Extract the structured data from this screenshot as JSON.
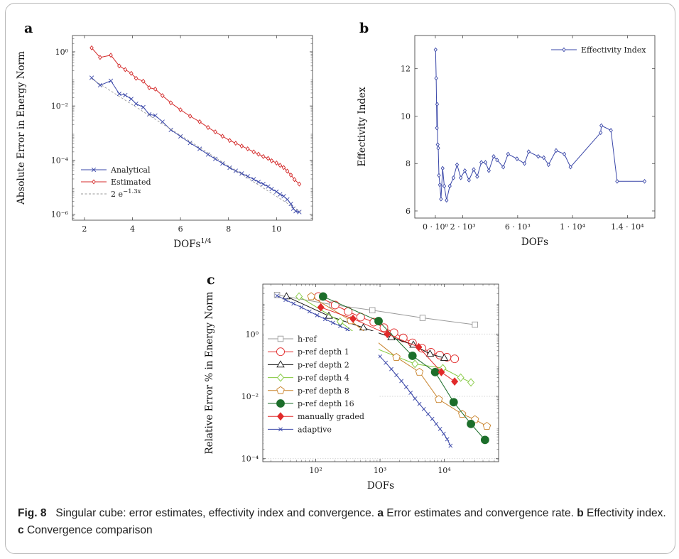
{
  "chart_data": [
    {
      "panel_label": "a",
      "type": "line",
      "xlabel_base": "DOFs",
      "xlabel_sup": "1/4",
      "ylabel": "Absolute Error in Energy Norm",
      "xlim": [
        1.5,
        11.5
      ],
      "yscale": "log",
      "ylim": [
        6e-07,
        4
      ],
      "xticks": [
        2,
        4,
        6,
        8,
        10
      ],
      "yticks": [
        {
          "value": 1,
          "label": "10⁰"
        },
        {
          "value": 0.01,
          "label": "10⁻²"
        },
        {
          "value": 0.0001,
          "label": "10⁻⁴"
        },
        {
          "value": 1e-06,
          "label": "10⁻⁶"
        }
      ],
      "legend_position": "bottom-left",
      "series": [
        {
          "name": "Analytical",
          "color": "#3a47a8",
          "marker": "x",
          "x": [
            2.3,
            2.65,
            3.1,
            3.45,
            3.7,
            3.95,
            4.15,
            4.45,
            4.7,
            4.95,
            5.25,
            5.6,
            6.0,
            6.4,
            6.8,
            7.15,
            7.45,
            7.75,
            8.05,
            8.3,
            8.55,
            8.8,
            9.05,
            9.25,
            9.45,
            9.65,
            9.8,
            10.0,
            10.15,
            10.3,
            10.45,
            10.6,
            10.7,
            10.8,
            10.95
          ],
          "y": [
            0.11,
            0.058,
            0.085,
            0.028,
            0.025,
            0.018,
            0.012,
            0.009,
            0.0049,
            0.0044,
            0.0026,
            0.0013,
            0.00075,
            0.00043,
            0.00026,
            0.00016,
            0.00011,
            7.5e-05,
            5.2e-05,
            4e-05,
            3.2e-05,
            2.5e-05,
            1.95e-05,
            1.55e-05,
            1.3e-05,
            1.05e-05,
            8.5e-06,
            6.8e-06,
            5.4e-06,
            4.6e-06,
            3.5e-06,
            2.4e-06,
            1.6e-06,
            1.3e-06,
            1.2e-06
          ]
        },
        {
          "name": "Estimated",
          "color": "#d42b2b",
          "marker": "diamond",
          "x": [
            2.3,
            2.65,
            3.1,
            3.45,
            3.7,
            3.95,
            4.15,
            4.45,
            4.7,
            4.95,
            5.25,
            5.6,
            6.0,
            6.4,
            6.8,
            7.15,
            7.45,
            7.75,
            8.05,
            8.3,
            8.55,
            8.8,
            9.05,
            9.25,
            9.45,
            9.65,
            9.8,
            10.0,
            10.15,
            10.3,
            10.45,
            10.6,
            10.75,
            10.95
          ],
          "y": [
            1.4,
            0.62,
            0.75,
            0.3,
            0.22,
            0.16,
            0.105,
            0.082,
            0.047,
            0.042,
            0.024,
            0.013,
            0.0072,
            0.0042,
            0.0026,
            0.0016,
            0.0011,
            0.00076,
            0.00053,
            0.00042,
            0.00033,
            0.00026,
            0.0002,
            0.000165,
            0.000135,
            0.000115,
            9.4e-05,
            7.8e-05,
            6.4e-05,
            5.3e-05,
            3.9e-05,
            2.8e-05,
            1.9e-05,
            1.3e-05
          ]
        },
        {
          "name": "2 e",
          "name_sup": "−1.3x",
          "color": "#9a9a9a",
          "marker": "none",
          "dashed": true,
          "x": [
            2.3,
            11.0
          ],
          "y": [
            0.1004,
            1.24e-06
          ]
        }
      ]
    },
    {
      "panel_label": "b",
      "type": "line",
      "xlabel": "DOFs",
      "ylabel": "Effectivity Index",
      "xlim": [
        -1500,
        16000
      ],
      "ylim": [
        5.7,
        13.4
      ],
      "xticks": [
        {
          "value": 0,
          "label": "0 · 10⁰"
        },
        {
          "value": 2000,
          "label": "2 · 10³"
        },
        {
          "value": 6000,
          "label": "6 · 10³"
        },
        {
          "value": 10000,
          "label": "1 · 10⁴"
        },
        {
          "value": 14000,
          "label": "1.4 · 10⁴"
        }
      ],
      "yticks": [
        6,
        8,
        10,
        12
      ],
      "legend_position": "top-right",
      "series": [
        {
          "name": "Effectivity Index",
          "color": "#3a47a8",
          "marker": "diamond",
          "x": [
            15,
            60,
            110,
            130,
            170,
            210,
            260,
            330,
            410,
            530,
            650,
            820,
            1050,
            1320,
            1580,
            1850,
            2150,
            2450,
            2800,
            3050,
            3350,
            3650,
            3900,
            4250,
            4500,
            4950,
            5300,
            5950,
            6500,
            6800,
            7500,
            7900,
            8250,
            8800,
            9400,
            9850,
            12050,
            12100,
            12800,
            13250,
            15250
          ],
          "y": [
            12.8,
            11.6,
            9.5,
            10.5,
            8.8,
            8.65,
            7.5,
            7.1,
            6.5,
            7.8,
            7.05,
            6.45,
            7.05,
            7.4,
            7.95,
            7.4,
            7.7,
            7.3,
            7.75,
            7.45,
            8.05,
            8.05,
            7.7,
            8.3,
            8.15,
            7.85,
            8.4,
            8.2,
            8.0,
            8.5,
            8.3,
            8.25,
            7.95,
            8.55,
            8.4,
            7.85,
            9.3,
            9.6,
            9.4,
            7.25,
            7.25
          ]
        }
      ]
    },
    {
      "panel_label": "c",
      "type": "line",
      "xlabel": "DOFs",
      "ylabel": "Relative Error % in Energy Norm",
      "xscale": "log",
      "yscale": "log",
      "xlim": [
        15,
        70000
      ],
      "ylim": [
        8e-05,
        40
      ],
      "xticks": [
        {
          "value": 100,
          "label": "10²"
        },
        {
          "value": 1000,
          "label": "10³"
        },
        {
          "value": 10000,
          "label": "10⁴"
        }
      ],
      "yticks": [
        {
          "value": 1,
          "label": "10⁰"
        },
        {
          "value": 0.01,
          "label": "10⁻²"
        },
        {
          "value": 0.0001,
          "label": "10⁻⁴"
        }
      ],
      "grid": "horizontal-dashed",
      "legend_position": "left",
      "series": [
        {
          "name": "h-ref",
          "color": "#9a9a9a",
          "marker": "square",
          "markerSize": 3.8,
          "x": [
            25,
            180,
            760,
            4600,
            30000
          ],
          "y": [
            18,
            8.8,
            5.8,
            3.3,
            2.0
          ]
        },
        {
          "name": "p-ref depth 1",
          "color": "#e12a2a",
          "marker": "circle-open",
          "markerSize": 5.5,
          "x": [
            110,
            200,
            320,
            500,
            800,
            1150,
            1650,
            2300,
            3200,
            4500,
            6200,
            8500,
            11000,
            14500
          ],
          "y": [
            16,
            8.5,
            5.3,
            3.5,
            2.4,
            1.6,
            1.1,
            0.75,
            0.52,
            0.35,
            0.26,
            0.21,
            0.18,
            0.16
          ]
        },
        {
          "name": "p-ref depth 2",
          "color": "#111111",
          "marker": "triangle-open",
          "markerSize": 5.2,
          "x": [
            35,
            160,
            550,
            1500,
            3300,
            6000,
            10000
          ],
          "y": [
            16,
            3.8,
            1.6,
            0.78,
            0.45,
            0.23,
            0.17
          ]
        },
        {
          "name": "p-ref depth 4",
          "color": "#82c83c",
          "marker": "diamond-open",
          "markerSize": 5.2,
          "x": [
            55,
            240,
            820,
            3500,
            9500,
            18000,
            26000
          ],
          "y": [
            16,
            2.5,
            0.36,
            0.11,
            0.08,
            0.04,
            0.028
          ]
        },
        {
          "name": "p-ref depth 8",
          "color": "#c8822a",
          "marker": "pentagon-open",
          "markerSize": 5.5,
          "x": [
            85,
            350,
            1800,
            4100,
            8200,
            19000,
            30000,
            46000
          ],
          "y": [
            16,
            2.7,
            0.18,
            0.06,
            0.008,
            0.0027,
            0.0018,
            0.0011
          ]
        },
        {
          "name": "p-ref depth 16",
          "color": "#1c6e2a",
          "marker": "circle-filled",
          "markerSize": 5.5,
          "x": [
            130,
            950,
            3200,
            7200,
            14000,
            26000,
            43000
          ],
          "y": [
            16,
            2.6,
            0.2,
            0.06,
            0.0065,
            0.0013,
            0.0004
          ]
        },
        {
          "name": "manually graded",
          "color": "#e12a2a",
          "marker": "diamond-filled",
          "markerSize": 5.2,
          "x": [
            120,
            380,
            1300,
            4000,
            9000,
            14500
          ],
          "y": [
            7.2,
            3.1,
            1.0,
            0.38,
            0.06,
            0.03
          ]
        },
        {
          "name": "adaptive",
          "color": "#3a47a8",
          "marker": "x",
          "markerSize": 2.6,
          "x": [
            25,
            34,
            45,
            60,
            80,
            105,
            140,
            185,
            240,
            310,
            400,
            520,
            660,
            820,
            1000,
            1230,
            1500,
            1800,
            2150,
            2550,
            3000,
            3500,
            4100,
            4800,
            5600,
            6500,
            7500,
            8600,
            9800,
            11100,
            12500
          ],
          "y": [
            17,
            12.5,
            9.5,
            7.2,
            5.3,
            4.0,
            3.0,
            2.3,
            1.8,
            1.4,
            1.0,
            0.72,
            0.46,
            0.3,
            0.19,
            0.12,
            0.075,
            0.048,
            0.031,
            0.02,
            0.013,
            0.0085,
            0.0057,
            0.0039,
            0.0027,
            0.0019,
            0.0013,
            0.0009,
            0.00063,
            0.00042,
            0.00026
          ]
        }
      ]
    }
  ],
  "caption": {
    "fig_label": "Fig. 8",
    "title": "Singular cube: error estimates, effectivity index and convergence.",
    "a_label": "a",
    "a_text": "Error estimates and convergence rate.",
    "b_label": "b",
    "b_text": "Effectivity index.",
    "c_label": "c",
    "c_text": "Convergence comparison"
  }
}
